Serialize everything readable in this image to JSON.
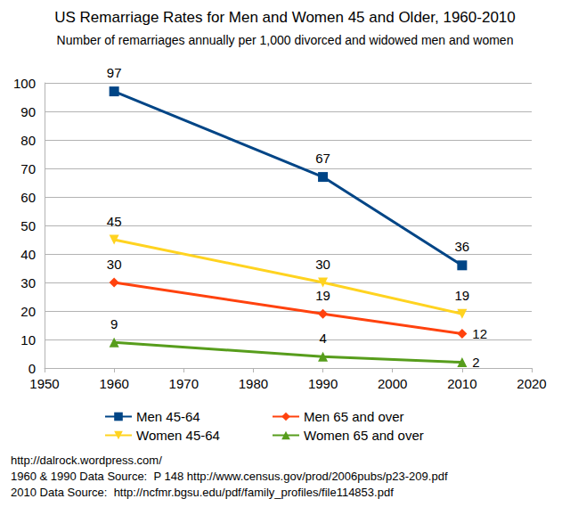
{
  "chart_data": {
    "type": "line",
    "title": "US Remarriage Rates for Men and Women 45 and Older, 1960-2010",
    "subtitle": "Number of remarriages annually per 1,000 divorced and widowed men and women",
    "x": [
      1960,
      1990,
      2010
    ],
    "series": [
      {
        "name": "Men 45-64",
        "color": "#004586",
        "marker": "square",
        "values": [
          97,
          67,
          36
        ]
      },
      {
        "name": "Men 65 and over",
        "color": "#ff420e",
        "marker": "diamond",
        "values": [
          30,
          19,
          12
        ]
      },
      {
        "name": "Women 45-64",
        "color": "#ffd320",
        "marker": "triangle_down",
        "values": [
          45,
          30,
          19
        ]
      },
      {
        "name": "Women 65 and over",
        "color": "#579d1c",
        "marker": "triangle",
        "values": [
          9,
          4,
          2
        ]
      }
    ],
    "xlim": [
      1950,
      2020
    ],
    "xticks": [
      1950,
      1960,
      1970,
      1980,
      1990,
      2000,
      2010,
      2020
    ],
    "ylim": [
      0,
      100
    ],
    "yticks": [
      0,
      10,
      20,
      30,
      40,
      50,
      60,
      70,
      80,
      90,
      100
    ],
    "grid": true,
    "legend": "bottom",
    "data_labels": true,
    "annotations": [
      "http://dalrock.wordpress.com/",
      "1960 & 1990 Data Source:  P 148 http://www.census.gov/prod/2006pubs/p23-209.pdf",
      "2010 Data Source:  http://ncfmr.bgsu.edu/pdf/family_profiles/file114853.pdf"
    ]
  }
}
